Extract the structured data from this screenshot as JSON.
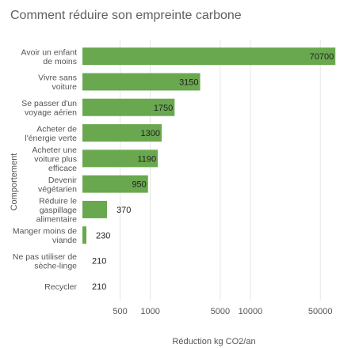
{
  "chart_data": {
    "type": "bar",
    "orientation": "horizontal",
    "title": "Comment réduire son empreinte carbone",
    "xlabel": "Réduction kg CO2/an",
    "ylabel": "Comportement",
    "x_scale": "log",
    "xlim": [
      210,
      80000
    ],
    "x_ticks": [
      500,
      1000,
      5000,
      10000,
      50000
    ],
    "x_tick_labels": [
      "500",
      "1000",
      "5000",
      "10000",
      "50000"
    ],
    "grid": true,
    "bar_color": "#6aa84f",
    "categories": [
      [
        "Avoir un enfant",
        "de moins"
      ],
      [
        "Vivre sans",
        "voiture"
      ],
      [
        "Se passer d'un",
        "voyage aérien"
      ],
      [
        "Acheter de",
        "l'énergie verte"
      ],
      [
        "Acheter une",
        "voiture plus",
        "efficace"
      ],
      [
        "Devenir",
        "végétarien"
      ],
      [
        "Réduire le",
        "gaspillage",
        "alimentaire"
      ],
      [
        "Manger moins de",
        "viande"
      ],
      [
        "Ne pas utiliser de",
        "sèche-linge"
      ],
      [
        "Recycler"
      ]
    ],
    "values": [
      70700,
      3150,
      1750,
      1300,
      1190,
      950,
      370,
      230,
      210,
      210
    ],
    "value_labels": [
      "70700",
      "3150",
      "1750",
      "1300",
      "1190",
      "950",
      "370",
      "230",
      "210",
      "210"
    ]
  }
}
